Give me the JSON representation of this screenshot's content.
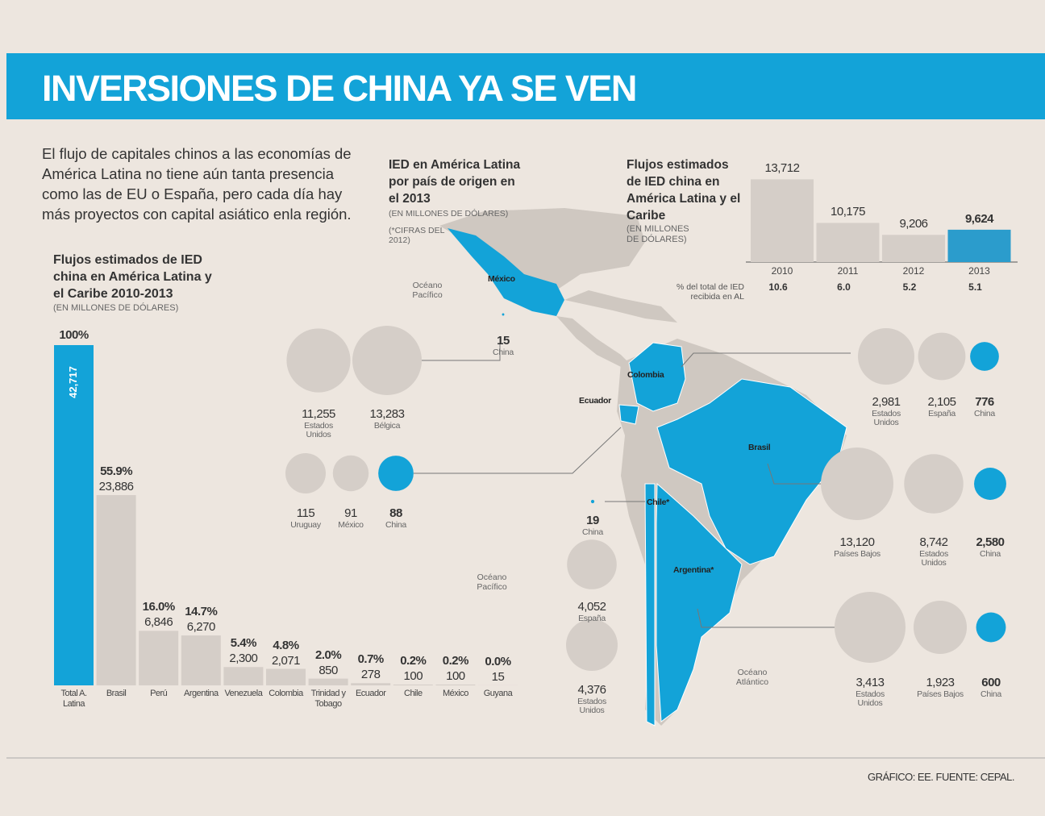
{
  "header": {
    "title": "INVERSIONES DE CHINA YA SE VEN",
    "intro": "El flujo de capitales chinos a las economías de América Latina no tiene aún tanta presencia como las de EU o España, pero cada día hay más proyectos con capital asiático enla región.",
    "source": "GRÁFICO: EE. FUENTE: CEPAL."
  },
  "map": {
    "labels": [
      "Océano Pacífico",
      "Océano Pacífico",
      "Océano Atlántico"
    ]
  },
  "chart_data": [
    {
      "type": "bar",
      "title": "Flujos estimados de IED china en América Latina y el Caribe 2010-2013",
      "subtitle": "(EN MILLONES DE DÓLARES)",
      "categories": [
        "Total A. Latina",
        "Brasil",
        "Perú",
        "Argentina",
        "Venezuela",
        "Colombia",
        "Trinidad y Tobago",
        "Ecuador",
        "Chile",
        "México",
        "Guyana"
      ],
      "values": [
        42717,
        23886,
        6846,
        6270,
        2300,
        2071,
        850,
        278,
        100,
        100,
        15
      ],
      "value_labels": [
        "42,717",
        "23,886",
        "6,846",
        "6,270",
        "2,300",
        "2,071",
        "850",
        "278",
        "100",
        "100",
        "15"
      ],
      "shares": [
        100,
        55.9,
        16.0,
        14.7,
        5.4,
        4.8,
        2.0,
        0.7,
        0.2,
        0.2,
        0.0
      ],
      "share_labels": [
        "100%",
        "55.9%",
        "16.0%",
        "14.7%",
        "5.4%",
        "4.8%",
        "2.0%",
        "0.7%",
        "0.2%",
        "0.2%",
        "0.0%"
      ],
      "colors": [
        "#13a3d8",
        "#d5cec8",
        "#d5cec8",
        "#d5cec8",
        "#d5cec8",
        "#d5cec8",
        "#d5cec8",
        "#d5cec8",
        "#d5cec8",
        "#d5cec8",
        "#d5cec8"
      ]
    },
    {
      "type": "bar",
      "title": "Flujos estimados de IED china en América Latina y el Caribe",
      "subtitle": "(EN MILLONES DE DÓLARES)",
      "categories": [
        "2010",
        "2011",
        "2012",
        "2013"
      ],
      "values": [
        13712,
        10175,
        9206,
        9624
      ],
      "value_labels": [
        "13,712",
        "10,175",
        "9,206",
        "9,624"
      ],
      "ylim": [
        7000,
        14000
      ],
      "share_title": "% del total de IED recibida en AL",
      "shares": [
        10.6,
        6.0,
        5.2,
        5.1
      ],
      "share_labels": [
        "10.6",
        "6.0",
        "5.2",
        "5.1"
      ],
      "colors": [
        "#d5cec8",
        "#d5cec8",
        "#d5cec8",
        "#2b9ccc"
      ]
    },
    {
      "type": "bubble",
      "title": "IED en América Latina por país de origen en el 2013",
      "subtitle": "(EN MILLONES DE DÓLARES)",
      "note": "(*CIFRAS DEL 2012)",
      "groups": [
        {
          "country": "México",
          "names": [
            "Estados Unidos",
            "Bélgica",
            "China"
          ],
          "values": [
            11255,
            13283,
            15
          ],
          "value_labels": [
            "11,255",
            "13,283",
            "15"
          ],
          "colors": [
            "#d5cec8",
            "#d5cec8",
            "#13a3d8"
          ]
        },
        {
          "country": "Ecuador",
          "names": [
            "Uruguay",
            "México",
            "China"
          ],
          "values": [
            115,
            91,
            88
          ],
          "value_labels": [
            "115",
            "91",
            "88"
          ],
          "colors": [
            "#d5cec8",
            "#d5cec8",
            "#13a3d8"
          ]
        },
        {
          "country": "Colombia",
          "names": [
            "Estados Unidos",
            "España",
            "China"
          ],
          "values": [
            2981,
            2105,
            776
          ],
          "value_labels": [
            "2,981",
            "2,105",
            "776"
          ],
          "colors": [
            "#d5cec8",
            "#d5cec8",
            "#13a3d8"
          ]
        },
        {
          "country": "Brasil",
          "names": [
            "Países Bajos",
            "Estados Unidos",
            "China"
          ],
          "values": [
            13120,
            8742,
            2580
          ],
          "value_labels": [
            "13,120",
            "8,742",
            "2,580"
          ],
          "colors": [
            "#d5cec8",
            "#d5cec8",
            "#13a3d8"
          ]
        },
        {
          "country": "Chile*",
          "names": [
            "China",
            "España",
            "Estados Unidos"
          ],
          "values": [
            19,
            4052,
            4376
          ],
          "value_labels": [
            "19",
            "4,052",
            "4,376"
          ],
          "colors": [
            "#13a3d8",
            "#d5cec8",
            "#d5cec8"
          ]
        },
        {
          "country": "Argentina*",
          "names": [
            "Estados Unidos",
            "Países Bajos",
            "China"
          ],
          "values": [
            3413,
            1923,
            600
          ],
          "value_labels": [
            "3,413",
            "1,923",
            "600"
          ],
          "colors": [
            "#d5cec8",
            "#d5cec8",
            "#13a3d8"
          ]
        }
      ]
    }
  ]
}
